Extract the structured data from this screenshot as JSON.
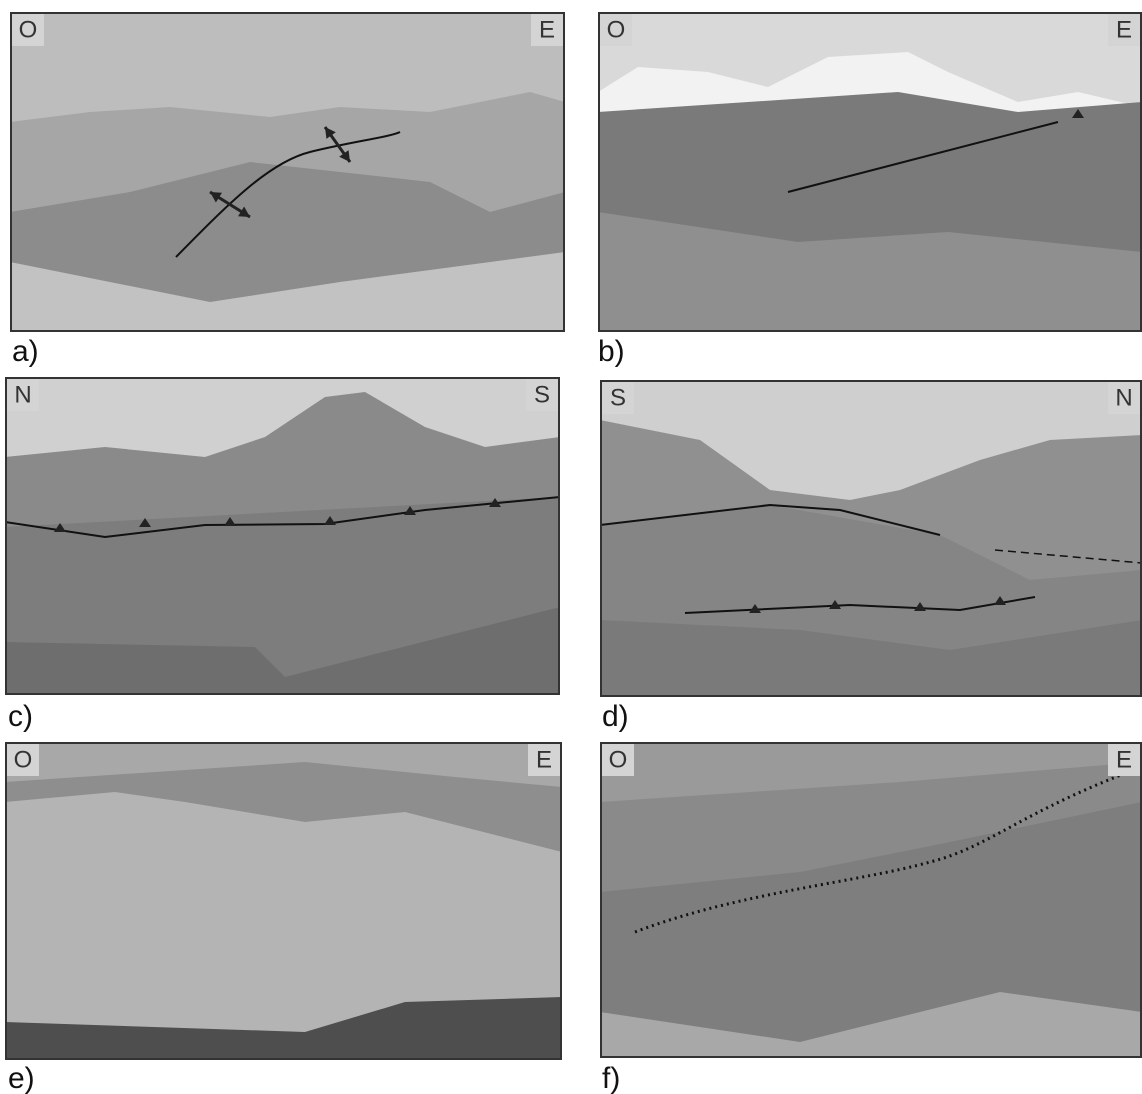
{
  "panels": [
    {
      "label": "a)",
      "left": "O",
      "right": "E"
    },
    {
      "label": "b)",
      "left": "O",
      "right": "E"
    },
    {
      "label": "c)",
      "left": "N",
      "right": "S"
    },
    {
      "label": "d)",
      "left": "S",
      "right": "N"
    },
    {
      "label": "e)",
      "left": "O",
      "right": "E"
    },
    {
      "label": "f)",
      "left": "O",
      "right": "E"
    }
  ]
}
